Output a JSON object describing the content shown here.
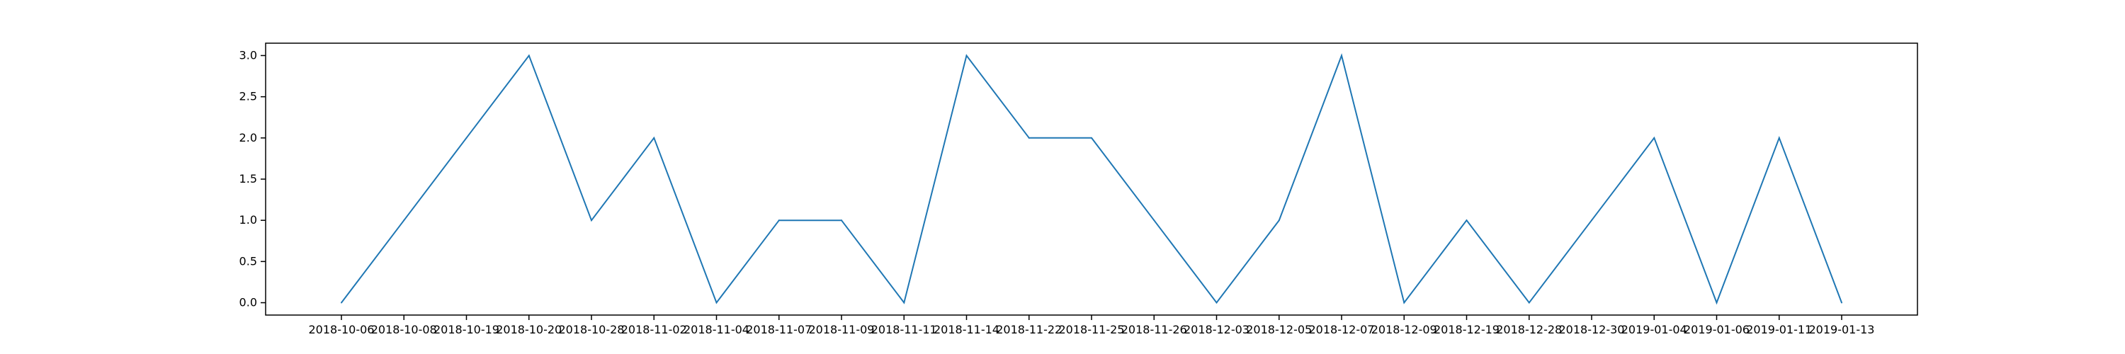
{
  "chart_data": {
    "type": "line",
    "title": "",
    "xlabel": "",
    "ylabel": "",
    "categories": [
      "2018-10-06",
      "2018-10-08",
      "2018-10-19",
      "2018-10-20",
      "2018-10-28",
      "2018-11-02",
      "2018-11-04",
      "2018-11-07",
      "2018-11-09",
      "2018-11-11",
      "2018-11-14",
      "2018-11-22",
      "2018-11-25",
      "2018-11-26",
      "2018-12-03",
      "2018-12-05",
      "2018-12-07",
      "2018-12-09",
      "2018-12-19",
      "2018-12-28",
      "2018-12-30",
      "2019-01-04",
      "2019-01-06",
      "2019-01-11",
      "2019-01-13"
    ],
    "series": [
      {
        "values": [
          0,
          1,
          2,
          3,
          1,
          2,
          0,
          1,
          1,
          0,
          3,
          2,
          2,
          1,
          0,
          1,
          3,
          0,
          1,
          0,
          1,
          2,
          0,
          2,
          0
        ],
        "color": "#1f77b4"
      }
    ],
    "yticks": [
      "0.0",
      "0.5",
      "1.0",
      "1.5",
      "2.0",
      "2.5",
      "3.0"
    ],
    "ylim": [
      -0.15,
      3.15
    ],
    "grid": false,
    "legend": "none"
  }
}
